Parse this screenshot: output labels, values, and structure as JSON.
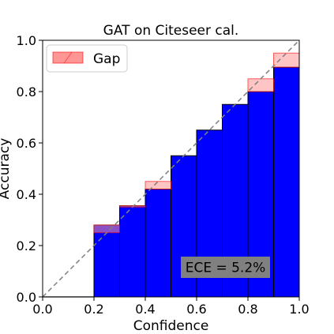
{
  "chart_data": {
    "type": "bar",
    "title": "GAT on Citeseer cal.",
    "xlabel": "Confidence",
    "ylabel": "Accuracy",
    "xlim": [
      0.0,
      1.0
    ],
    "ylim": [
      0.0,
      1.0
    ],
    "xticks": [
      "0.0",
      "0.2",
      "0.4",
      "0.6",
      "0.8",
      "1.0"
    ],
    "yticks": [
      "0.0",
      "0.2",
      "0.4",
      "0.6",
      "0.8",
      "1.0"
    ],
    "grid": false,
    "bin_edges": [
      0.0,
      0.1,
      0.2,
      0.3,
      0.4,
      0.5,
      0.6,
      0.7,
      0.8,
      0.9,
      1.0
    ],
    "bin_centers": [
      0.05,
      0.15,
      0.25,
      0.35,
      0.45,
      0.55,
      0.65,
      0.75,
      0.85,
      0.95
    ],
    "accuracy": [
      0.0,
      0.0,
      0.28,
      0.355,
      0.42,
      0.55,
      0.65,
      0.75,
      0.8,
      0.895
    ],
    "legend": {
      "label": "Gap",
      "placement": "upper-left"
    },
    "annotation": "ECE = 5.2%",
    "colors": {
      "output_bar": "#0000ff",
      "gap_fill": "#ff9696",
      "gap_edge": "#ff0000",
      "diagonal": "#808080",
      "annotation_box": "#808080"
    }
  }
}
